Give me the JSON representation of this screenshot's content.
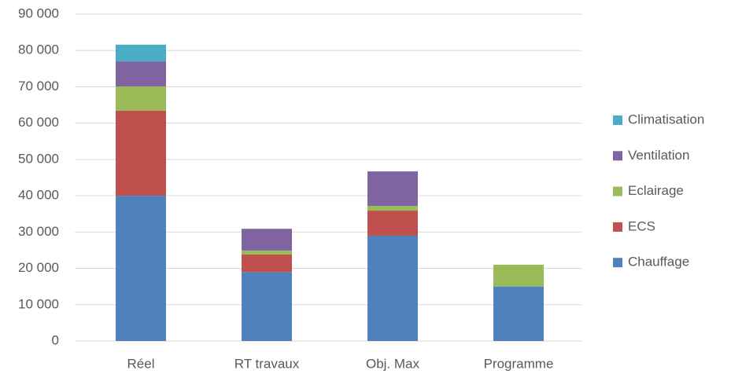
{
  "chart_data": {
    "type": "stacked_bar",
    "categories": [
      "Réel",
      "RT travaux",
      "Obj. Max",
      "Programme"
    ],
    "series": [
      {
        "name": "Chauffage",
        "color": "#4f81bd",
        "values": [
          40000,
          19000,
          29000,
          15000
        ]
      },
      {
        "name": "ECS",
        "color": "#c0504d",
        "values": [
          23400,
          4800,
          6900,
          0
        ]
      },
      {
        "name": "Eclairage",
        "color": "#9bbb59",
        "values": [
          6700,
          1100,
          1300,
          6000
        ]
      },
      {
        "name": "Ventilation",
        "color": "#8064a2",
        "values": [
          6900,
          6000,
          9500,
          0
        ]
      },
      {
        "name": "Climatisation",
        "color": "#4bacc6",
        "values": [
          4600,
          0,
          0,
          0
        ]
      }
    ],
    "ylim": [
      0,
      90000
    ],
    "yticks": [
      0,
      {
        "value": 10000,
        "label": "10 000"
      },
      {
        "value": 20000,
        "label": "20 000"
      },
      {
        "value": 30000,
        "label": "30 000"
      },
      {
        "value": 40000,
        "label": "40 000"
      },
      {
        "value": 50000,
        "label": "50 000"
      },
      {
        "value": 60000,
        "label": "60 000"
      },
      {
        "value": 70000,
        "label": "70 000"
      },
      {
        "value": 80000,
        "label": "80 000"
      },
      {
        "value": 90000,
        "label": "90 000"
      }
    ],
    "grid": true,
    "legend": "right"
  }
}
